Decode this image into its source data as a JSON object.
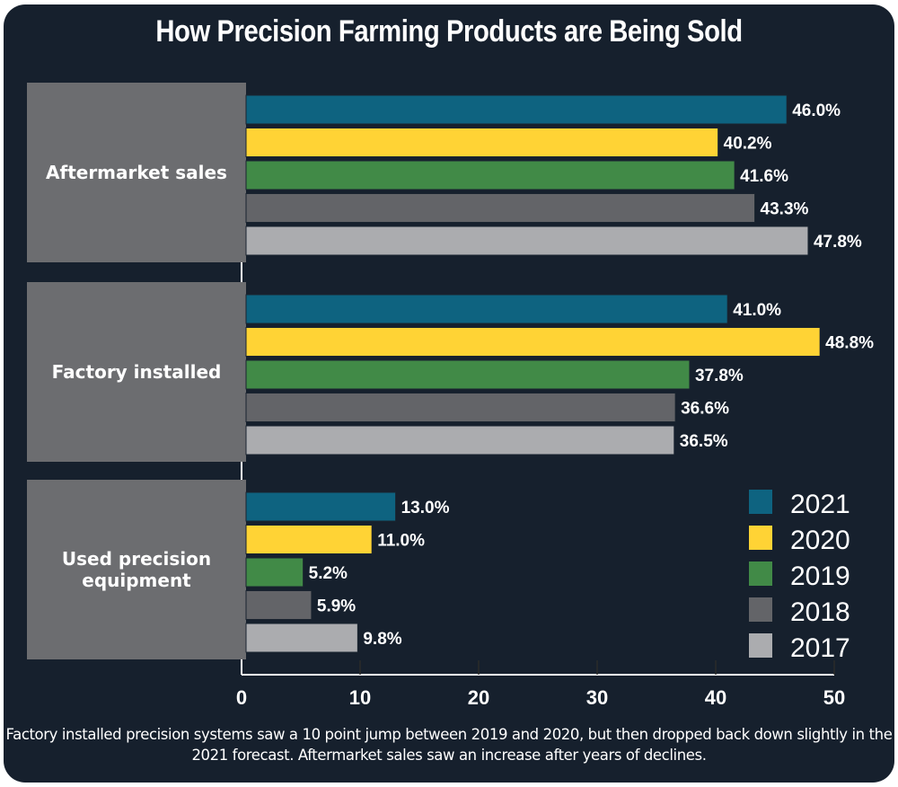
{
  "title": "How Precision Farming Products are Being Sold",
  "caption": "Factory installed precision systems saw a 10 point jump between 2019 and 2020, but then dropped back down slightly in the 2021 forecast. Aftermarket sales saw an increase after years of declines.",
  "colors": {
    "background": "#16202d",
    "category_box": "#6c6d70",
    "axis": "#ffffff",
    "2021": "#0e6380",
    "2020": "#ffd335",
    "2019": "#418a47",
    "2018": "#636468",
    "2017": "#abacaf"
  },
  "chart_data": {
    "type": "bar",
    "orientation": "horizontal",
    "title": "How Precision Farming Products are Being Sold",
    "xlabel": "",
    "ylabel": "",
    "xlim": [
      0,
      50
    ],
    "xticks": [
      0,
      10,
      20,
      30,
      40,
      50
    ],
    "value_suffix": "%",
    "grid": false,
    "legend_position": "bottom-right",
    "categories": [
      "Aftermarket sales",
      "Factory installed",
      "Used precision equipment"
    ],
    "category_lines": [
      [
        "Aftermarket sales"
      ],
      [
        "Factory installed"
      ],
      [
        "Used precision",
        "equipment"
      ]
    ],
    "series": [
      {
        "name": "2021",
        "values": [
          46.0,
          41.0,
          13.0
        ],
        "labels": [
          "46.0%",
          "41.0%",
          "13.0%"
        ]
      },
      {
        "name": "2020",
        "values": [
          40.2,
          48.8,
          11.0
        ],
        "labels": [
          "40.2%",
          "48.8%",
          "11.0%"
        ]
      },
      {
        "name": "2019",
        "values": [
          41.6,
          37.8,
          5.2
        ],
        "labels": [
          "41.6%",
          "37.8%",
          "5.2%"
        ]
      },
      {
        "name": "2018",
        "values": [
          43.3,
          36.6,
          5.9
        ],
        "labels": [
          "43.3%",
          "36.6%",
          "5.9%"
        ]
      },
      {
        "name": "2017",
        "values": [
          47.8,
          36.5,
          9.8
        ],
        "labels": [
          "47.8%",
          "36.5%",
          "9.8%"
        ]
      }
    ]
  }
}
